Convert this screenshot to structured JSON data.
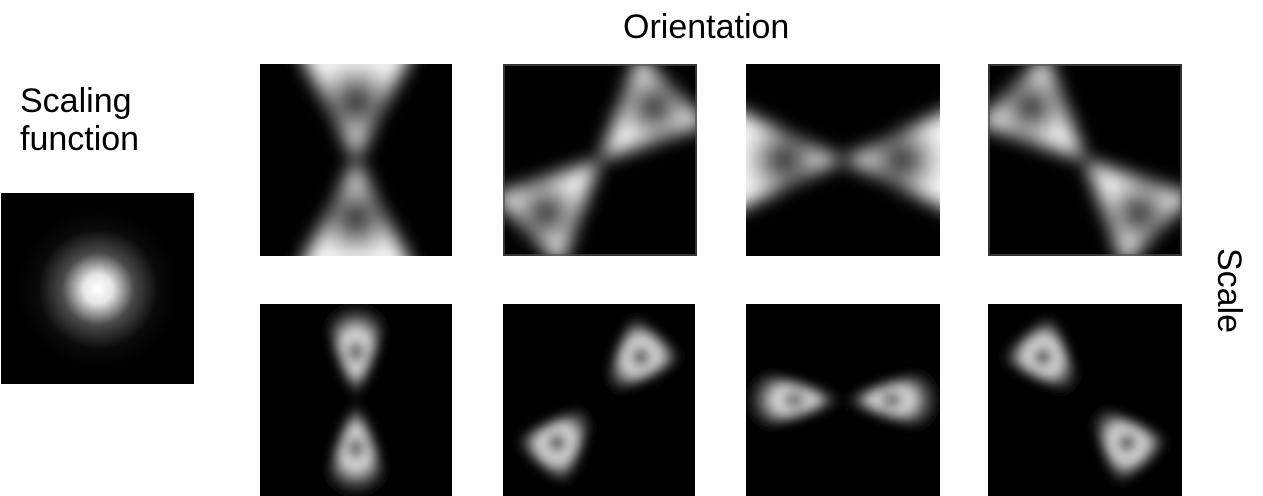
{
  "labels": {
    "orientation": "Orientation",
    "scaling_function_line1": "Scaling",
    "scaling_function_line2": "function",
    "scale": "Scale"
  },
  "colors": {
    "panel_background": "#000000",
    "filter_intensity": "#ffffff",
    "page_background": "#ffffff"
  },
  "figure": {
    "orientations_deg": [
      90,
      45,
      0,
      135
    ],
    "scales": [
      "coarse",
      "fine"
    ],
    "scaling_function": "isotropic-gaussian-blob"
  }
}
